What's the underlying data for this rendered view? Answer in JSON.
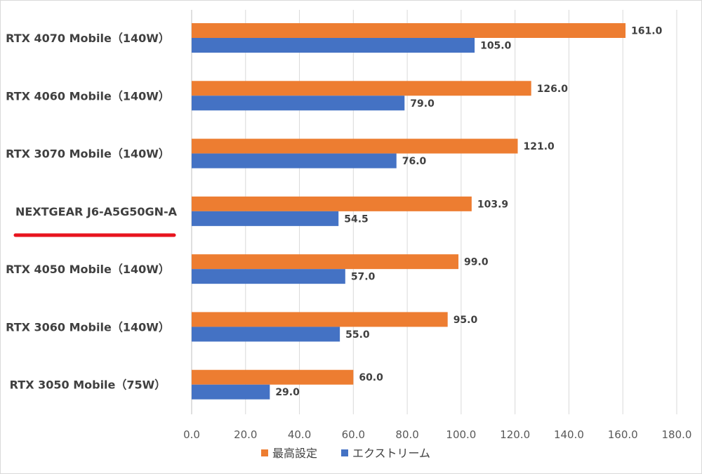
{
  "chart_data": {
    "type": "bar",
    "orientation": "horizontal",
    "categories": [
      "RTX 4070 Mobile（140W）",
      "RTX 4060 Mobile（140W）",
      "RTX 3070 Mobile（140W）",
      "NEXTGEAR J6-A5G50GN-A",
      "RTX 4050 Mobile（140W）",
      "RTX 3060 Mobile（140W）",
      "RTX 3050 Mobile（75W）"
    ],
    "highlighted_category": "NEXTGEAR J6-A5G50GN-A",
    "series": [
      {
        "name": "最高設定",
        "color": "#ED7D31",
        "values": [
          161.0,
          126.0,
          121.0,
          103.9,
          99.0,
          95.0,
          60.0
        ]
      },
      {
        "name": "エクストリーム",
        "color": "#4472C4",
        "values": [
          105.0,
          79.0,
          76.0,
          54.5,
          57.0,
          55.0,
          29.0
        ]
      }
    ],
    "xlim": [
      0,
      180
    ],
    "x_ticks": [
      "0.0",
      "20.0",
      "40.0",
      "60.0",
      "80.0",
      "100.0",
      "120.0",
      "140.0",
      "160.0",
      "180.0"
    ],
    "grid": "vertical",
    "legend_position": "bottom",
    "highlight_color": "#E8141E",
    "title": "",
    "xlabel": "",
    "ylabel": ""
  }
}
